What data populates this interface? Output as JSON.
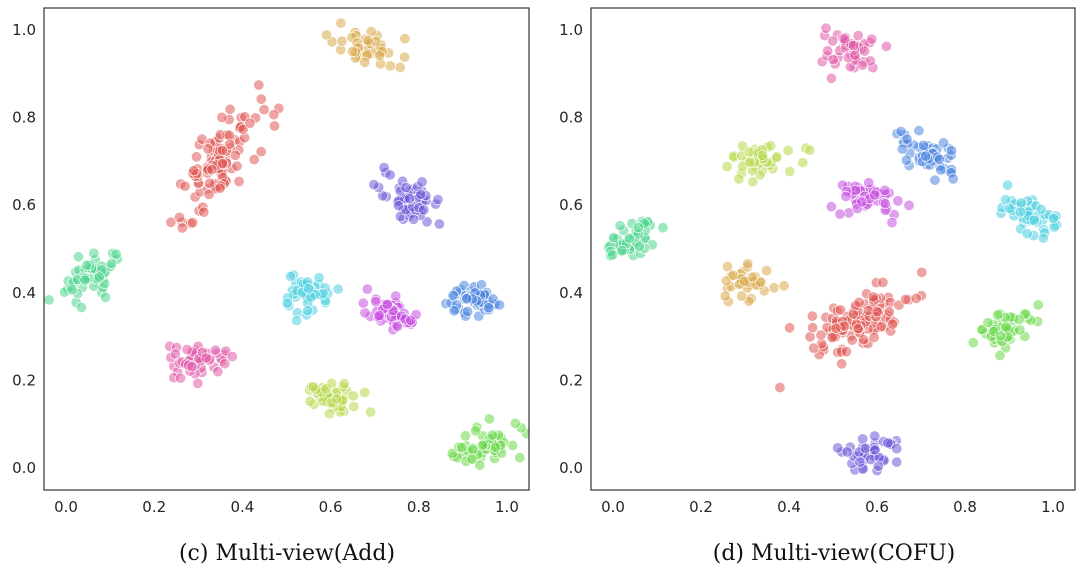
{
  "chart_data": [
    {
      "type": "scatter",
      "caption": "(c)  Multi-view(Add)",
      "xlim": [
        -0.05,
        1.05
      ],
      "ylim": [
        -0.05,
        1.05
      ],
      "xticks": [
        "0.0",
        "0.2",
        "0.4",
        "0.6",
        "0.8",
        "1.0"
      ],
      "yticks": [
        "0.0",
        "0.2",
        "0.4",
        "0.6",
        "0.8",
        "1.0"
      ],
      "grid": false,
      "clusters": [
        {
          "color": "#d9a94b",
          "x": 0.685,
          "y": 0.955,
          "n": 40
        },
        {
          "color": "#e05a55",
          "x": 0.345,
          "y": 0.695,
          "n": 110
        },
        {
          "color": "#6e5ad8",
          "x": 0.78,
          "y": 0.615,
          "n": 55
        },
        {
          "color": "#4fd68e",
          "x": 0.06,
          "y": 0.44,
          "n": 55
        },
        {
          "color": "#4ccfe0",
          "x": 0.545,
          "y": 0.395,
          "n": 45
        },
        {
          "color": "#c64fe0",
          "x": 0.745,
          "y": 0.35,
          "n": 55
        },
        {
          "color": "#4f86e0",
          "x": 0.925,
          "y": 0.385,
          "n": 55
        },
        {
          "color": "#e05aa8",
          "x": 0.3,
          "y": 0.245,
          "n": 50
        },
        {
          "color": "#b7d94b",
          "x": 0.61,
          "y": 0.16,
          "n": 45
        },
        {
          "color": "#69d94b",
          "x": 0.95,
          "y": 0.05,
          "n": 50
        }
      ]
    },
    {
      "type": "scatter",
      "caption": "(d)  Multi-view(COFU)",
      "xlim": [
        -0.05,
        1.05
      ],
      "ylim": [
        -0.05,
        1.05
      ],
      "xticks": [
        "0.0",
        "0.2",
        "0.4",
        "0.6",
        "0.8",
        "1.0"
      ],
      "yticks": [
        "0.0",
        "0.2",
        "0.4",
        "0.6",
        "0.8",
        "1.0"
      ],
      "grid": false,
      "clusters": [
        {
          "color": "#e05aa8",
          "x": 0.54,
          "y": 0.955,
          "n": 45
        },
        {
          "color": "#4f86e0",
          "x": 0.715,
          "y": 0.725,
          "n": 50
        },
        {
          "color": "#b7d94b",
          "x": 0.33,
          "y": 0.705,
          "n": 40
        },
        {
          "color": "#c64fe0",
          "x": 0.585,
          "y": 0.615,
          "n": 45
        },
        {
          "color": "#4ccfe0",
          "x": 0.955,
          "y": 0.575,
          "n": 45
        },
        {
          "color": "#4fd68e",
          "x": 0.04,
          "y": 0.52,
          "n": 45
        },
        {
          "color": "#d9a94b",
          "x": 0.305,
          "y": 0.425,
          "n": 40
        },
        {
          "color": "#e05a55",
          "x": 0.565,
          "y": 0.34,
          "n": 120
        },
        {
          "color": "#69d94b",
          "x": 0.895,
          "y": 0.32,
          "n": 45
        },
        {
          "color": "#6e5ad8",
          "x": 0.585,
          "y": 0.035,
          "n": 40
        }
      ]
    }
  ]
}
